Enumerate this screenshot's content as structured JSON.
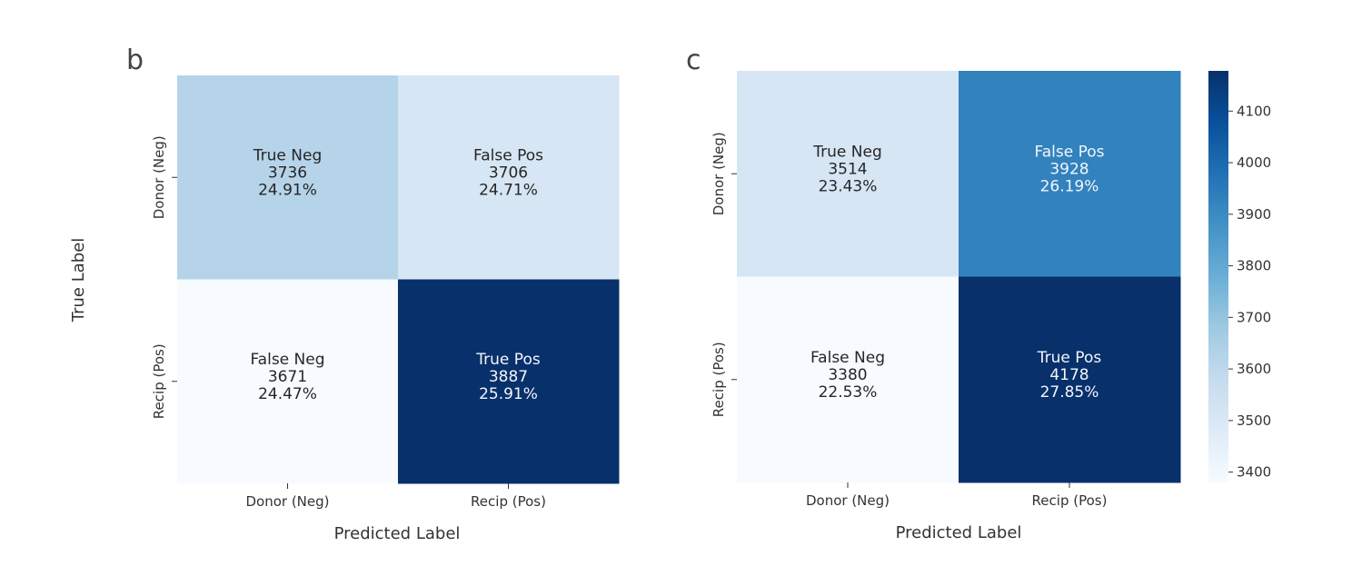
{
  "chart_data": [
    {
      "type": "heatmap",
      "panel_label": "b",
      "xlabel": "Predicted Label",
      "ylabel": "True Label",
      "x_categories": [
        "Donor (Neg)",
        "Recip (Pos)"
      ],
      "y_categories": [
        "Donor (Neg)",
        "Recip (Pos)"
      ],
      "cells": [
        [
          {
            "label": "True Neg",
            "value": 3736,
            "percent": "24.91%"
          },
          {
            "label": "False Pos",
            "value": 3706,
            "percent": "24.71%"
          }
        ],
        [
          {
            "label": "False Neg",
            "value": 3671,
            "percent": "24.47%"
          },
          {
            "label": "True Pos",
            "value": 3887,
            "percent": "25.91%"
          }
        ]
      ],
      "colormap": "Blues",
      "colorbar": false
    },
    {
      "type": "heatmap",
      "panel_label": "c",
      "xlabel": "Predicted Label",
      "ylabel": "",
      "x_categories": [
        "Donor (Neg)",
        "Recip (Pos)"
      ],
      "y_categories": [
        "Donor (Neg)",
        "Recip (Pos)"
      ],
      "cells": [
        [
          {
            "label": "True Neg",
            "value": 3514,
            "percent": "23.43%"
          },
          {
            "label": "False Pos",
            "value": 3928,
            "percent": "26.19%"
          }
        ],
        [
          {
            "label": "False Neg",
            "value": 3380,
            "percent": "22.53%"
          },
          {
            "label": "True Pos",
            "value": 4178,
            "percent": "27.85%"
          }
        ]
      ],
      "colormap": "Blues",
      "colorbar": true,
      "colorbar_ticks": [
        3400,
        3500,
        3600,
        3700,
        3800,
        3900,
        4000,
        4100
      ],
      "colorbar_range": [
        3380,
        4178
      ]
    }
  ]
}
